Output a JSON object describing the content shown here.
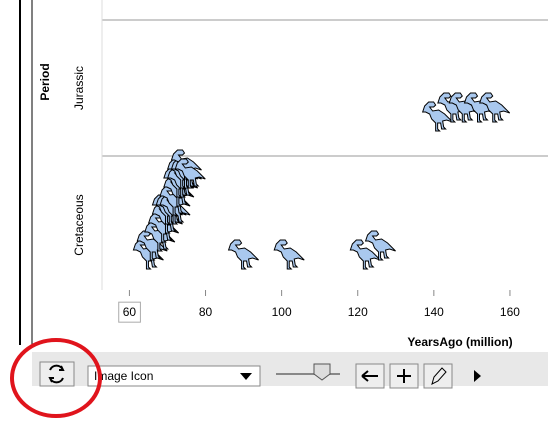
{
  "chart_data": {
    "type": "dot",
    "y_label": "Period",
    "x_label": "YearsAgo (million)",
    "groups": [
      {
        "category": "Jurassic",
        "values": [
          141,
          145,
          148,
          152,
          156
        ]
      },
      {
        "category": "Cretaceous",
        "values": [
          65,
          66,
          68,
          69,
          70,
          70,
          71,
          72,
          72,
          73,
          73,
          74,
          74,
          75,
          75,
          76,
          90,
          102,
          122,
          126
        ]
      }
    ],
    "xlim": [
      57,
      170
    ],
    "xticks": [
      60,
      80,
      100,
      120,
      140,
      160
    ],
    "icon_color": "#a9c8ee"
  },
  "toolbar": {
    "dropdown": "Image Icon"
  }
}
